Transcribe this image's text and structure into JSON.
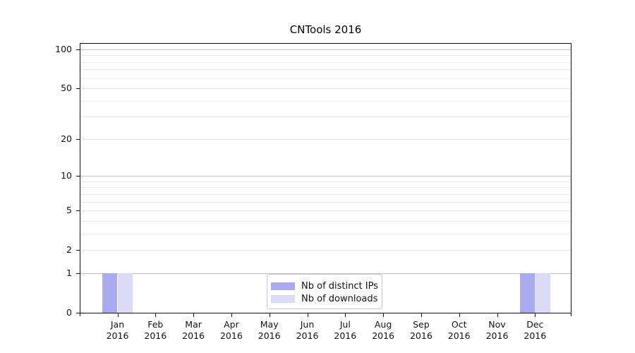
{
  "chart_data": {
    "type": "bar",
    "title": "CNTools 2016",
    "months": [
      "Jan",
      "Feb",
      "Mar",
      "Apr",
      "May",
      "Jun",
      "Jul",
      "Aug",
      "Sep",
      "Oct",
      "Nov",
      "Dec"
    ],
    "year_label": "2016",
    "categories": [
      "Jan 2016",
      "Feb 2016",
      "Mar 2016",
      "Apr 2016",
      "May 2016",
      "Jun 2016",
      "Jul 2016",
      "Aug 2016",
      "Sep 2016",
      "Oct 2016",
      "Nov 2016",
      "Dec 2016"
    ],
    "series": [
      {
        "name": "Nb of distinct IPs",
        "color": "#aaaaf0",
        "values": [
          1,
          0,
          0,
          0,
          0,
          0,
          0,
          0,
          0,
          0,
          0,
          1
        ]
      },
      {
        "name": "Nb of downloads",
        "color": "#dbdbf7",
        "values": [
          1,
          0,
          0,
          0,
          0,
          0,
          0,
          0,
          0,
          0,
          0,
          1
        ]
      }
    ],
    "xlabel": "",
    "ylabel": "",
    "ylim": [
      0,
      100
    ],
    "y_scale": "log10(value+1)",
    "y_tick_values": [
      0,
      1,
      2,
      5,
      10,
      20,
      50,
      100
    ],
    "major_gridlines": [
      1,
      10,
      100
    ],
    "minor_gridlines": [
      2,
      3,
      4,
      5,
      6,
      7,
      8,
      9,
      20,
      30,
      40,
      50,
      60,
      70,
      80,
      90
    ],
    "grid": "horizontal",
    "legend_position": "inside-bottom-center",
    "colors": {
      "major_grid": "#c3c3c3",
      "minor_grid": "#ececec",
      "frame": "#111111",
      "background": "#ffffff"
    }
  }
}
